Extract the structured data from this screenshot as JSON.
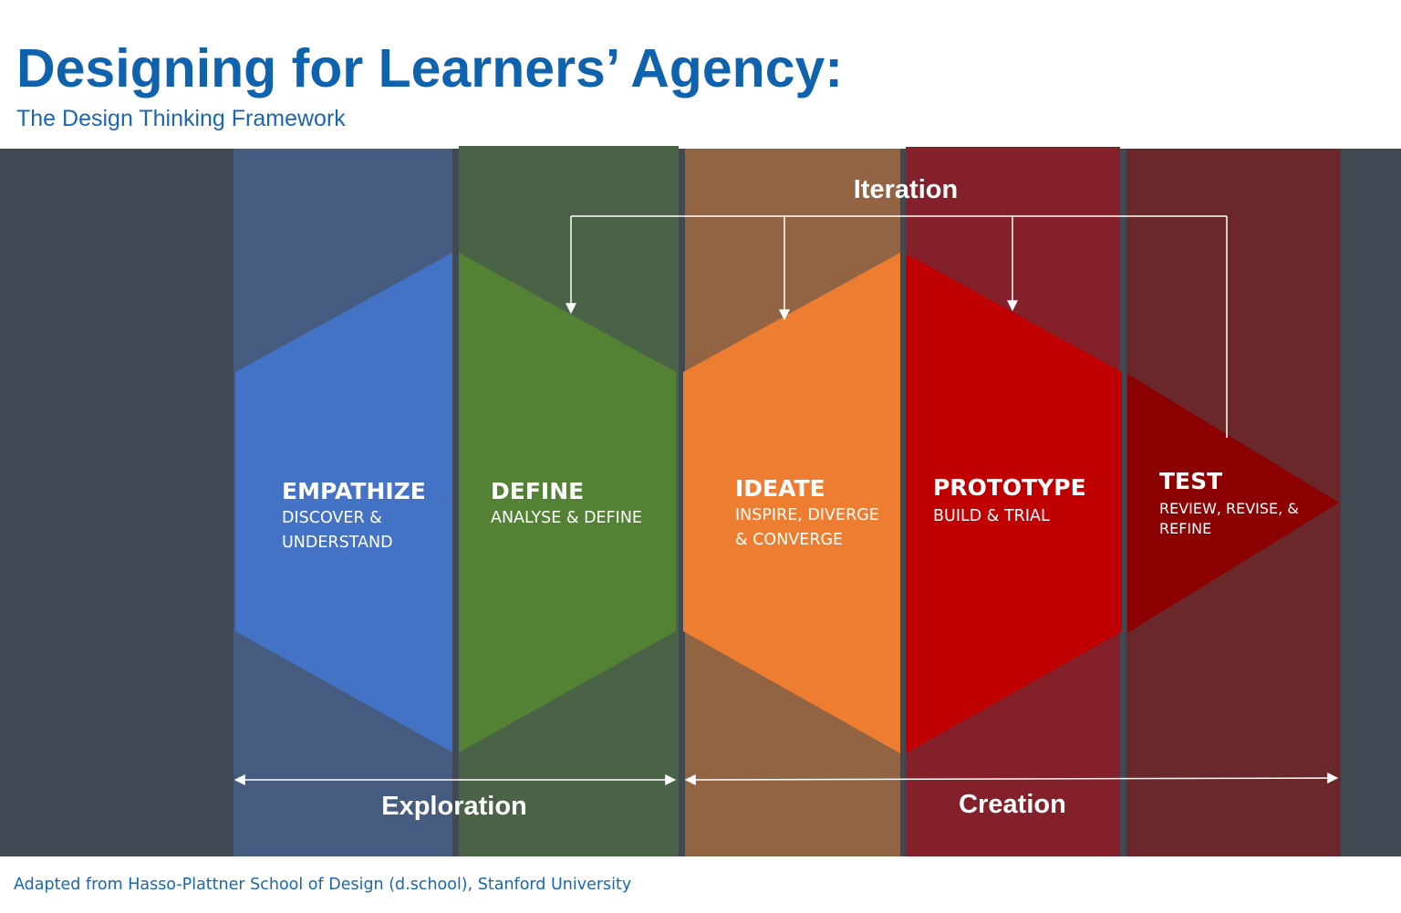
{
  "header": {
    "title": "Designing for Learners’ Agency:",
    "subtitle": "The Design Thinking Framework"
  },
  "colors": {
    "title": "#0f62ad",
    "background_band": "#414a53",
    "empathize": "#4472c4",
    "define": "#548235",
    "ideate": "#ed7d31",
    "prototype": "#c00000",
    "test": "#8b0000"
  },
  "iteration_label": "Iteration",
  "phases": [
    {
      "id": "empathize",
      "title": "EMPATHIZE",
      "subtitle_lines": [
        "DISCOVER &",
        "UNDERSTAND"
      ]
    },
    {
      "id": "define",
      "title": "DEFINE",
      "subtitle_lines": [
        "ANALYSE & DEFINE"
      ]
    },
    {
      "id": "ideate",
      "title": "IDEATE",
      "subtitle_lines": [
        "INSPIRE, DIVERGE",
        "& CONVERGE"
      ]
    },
    {
      "id": "prototype",
      "title": "PROTOTYPE",
      "subtitle_lines": [
        "BUILD & TRIAL"
      ]
    },
    {
      "id": "test",
      "title": "TEST",
      "subtitle_lines": [
        "REVIEW, REVISE, &",
        "REFINE"
      ]
    }
  ],
  "groups": [
    {
      "id": "exploration",
      "label": "Exploration"
    },
    {
      "id": "creation",
      "label": "Creation"
    }
  ],
  "footer": "Adapted from Hasso-Plattner School of Design (d.school), Stanford University"
}
